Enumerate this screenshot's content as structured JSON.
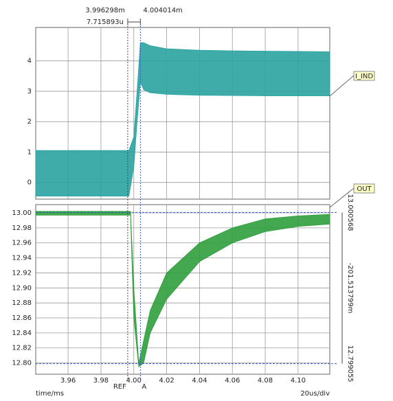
{
  "chart_data": [
    {
      "type": "band",
      "ylim": [
        -0.55,
        5.1
      ],
      "yticks": [
        0,
        1,
        2,
        3,
        4
      ],
      "series": [
        {
          "name": "I_IND",
          "color": "#2aa3a0",
          "x": [
            3.9403,
            3.96,
            3.98,
            3.997,
            4.0,
            4.002,
            4.004,
            4.006,
            4.01,
            4.02,
            4.04,
            4.06,
            4.08,
            4.1,
            4.1193
          ],
          "high": [
            1.05,
            1.05,
            1.05,
            1.05,
            1.5,
            3.0,
            4.6,
            4.6,
            4.5,
            4.4,
            4.35,
            4.33,
            4.32,
            4.31,
            4.3
          ],
          "low": [
            -0.45,
            -0.45,
            -0.45,
            -0.45,
            0.5,
            2.0,
            3.3,
            3.05,
            2.95,
            2.9,
            2.87,
            2.86,
            2.85,
            2.85,
            2.85
          ]
        }
      ]
    },
    {
      "type": "band",
      "xlim": [
        3.9403,
        4.1193
      ],
      "ylim": [
        12.785,
        13.011
      ],
      "xticks": [
        3.96,
        3.98,
        {
          "value": 4,
          "label": "4.00"
        },
        4.02,
        4.04,
        4.06,
        4.08,
        {
          "value": 4.1,
          "label": "4.10"
        }
      ],
      "yticks": [
        {
          "value": 12.8,
          "label": "12.80"
        },
        12.82,
        12.84,
        12.86,
        12.88,
        {
          "value": 12.9,
          "label": "12.90"
        },
        12.92,
        12.94,
        12.96,
        12.98,
        {
          "value": 13,
          "label": "13.00"
        }
      ],
      "series": [
        {
          "name": "OUT",
          "color": "#2f9e3c",
          "x": [
            3.9403,
            3.96,
            3.98,
            3.998,
            4.0,
            4.003,
            4.006,
            4.01,
            4.02,
            4.04,
            4.06,
            4.08,
            4.1,
            4.1193
          ],
          "high": [
            13.002,
            13.002,
            13.002,
            13.002,
            12.9,
            12.8,
            12.83,
            12.87,
            12.92,
            12.96,
            12.98,
            12.992,
            12.996,
            12.998
          ],
          "low": [
            12.997,
            12.997,
            12.997,
            12.997,
            12.86,
            12.795,
            12.8,
            12.84,
            12.885,
            12.935,
            12.96,
            12.975,
            12.982,
            12.985
          ]
        }
      ],
      "cursors": [
        {
          "label": "REF",
          "value": 3.996298,
          "readout": "3.996298m"
        },
        {
          "label": "A",
          "value": 4.004014,
          "readout": "4.004014m"
        }
      ],
      "cursor_delta": "7.715893u",
      "hcursors": [
        {
          "value": 13.000568,
          "label": "13.000568"
        },
        {
          "value": 12.799055,
          "label": "12.799055"
        }
      ],
      "hcursor_delta": "-201.513799m",
      "xlabel": "time/ms",
      "scale_label": "20us/div"
    }
  ]
}
